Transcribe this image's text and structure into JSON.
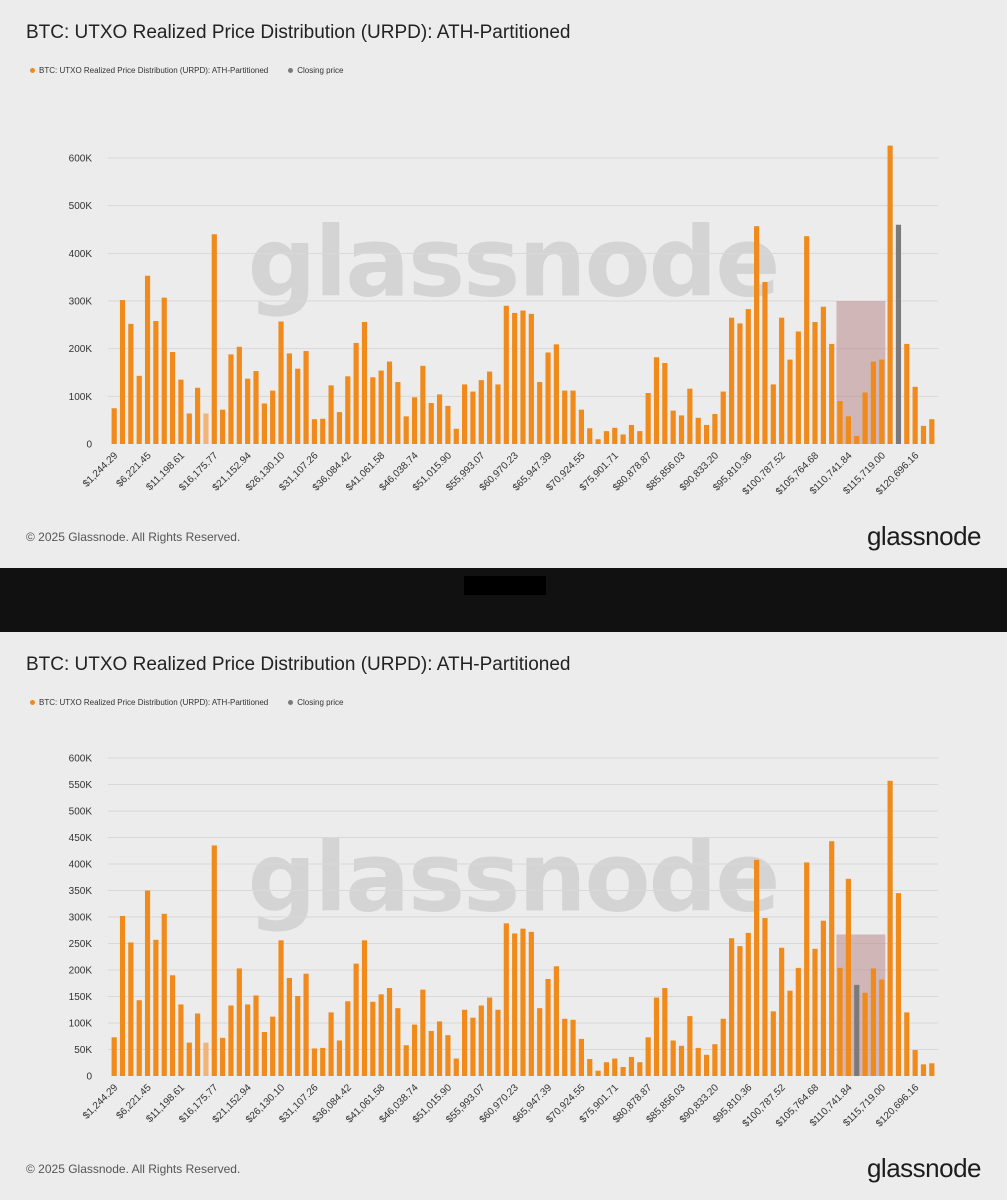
{
  "brand": {
    "watermark": "glassnode",
    "logo": "glassnode",
    "copyright": "© 2025 Glassnode. All Rights Reserved."
  },
  "colors": {
    "bar": "#ef8a1b",
    "bar_light": "#f1b377",
    "closing": "#7a7a7a",
    "highlight": "#b98a8a",
    "grid": "#d8d8d8"
  },
  "chart_data": [
    {
      "type": "bar",
      "title": "BTC: UTXO Realized Price Distribution (URPD): ATH-Partitioned",
      "legend": [
        {
          "label": "BTC: UTXO Realized Price Distribution (URPD): ATH-Partitioned",
          "color": "#ef8a1b"
        },
        {
          "label": "Closing price",
          "color": "#7a7a7a"
        }
      ],
      "legend_position": "top-left",
      "grid": true,
      "ylim": [
        0,
        600000
      ],
      "yticks": [
        0,
        100000,
        200000,
        300000,
        400000,
        500000,
        600000
      ],
      "ytick_labels": [
        "0",
        "100K",
        "200K",
        "300K",
        "400K",
        "500K",
        "600K"
      ],
      "xtick_labels": [
        "$1,244.29",
        "$6,221.45",
        "$11,198.61",
        "$16,175.77",
        "$21,152.94",
        "$26,130.10",
        "$31,107.26",
        "$36,084.42",
        "$41,061.58",
        "$46,038.74",
        "$51,015.90",
        "$55,993.07",
        "$60,970.23",
        "$65,947.39",
        "$70,924.55",
        "$75,901.71",
        "$80,878.87",
        "$85,856.03",
        "$90,833.20",
        "$95,810.36",
        "$100,787.52",
        "$105,764.68",
        "$110,741.84",
        "$115,719.00",
        "$120,696.16"
      ],
      "values": [
        75000,
        302000,
        252000,
        143000,
        353000,
        258000,
        307000,
        193000,
        135000,
        64000,
        118000,
        64000,
        440000,
        72000,
        188000,
        204000,
        137000,
        153000,
        85000,
        112000,
        257000,
        190000,
        158000,
        195000,
        52000,
        53000,
        123000,
        67000,
        142000,
        212000,
        256000,
        140000,
        154000,
        173000,
        130000,
        58000,
        98000,
        164000,
        86000,
        104000,
        80000,
        32000,
        125000,
        110000,
        134000,
        152000,
        125000,
        290000,
        275000,
        280000,
        273000,
        130000,
        192000,
        209000,
        112000,
        112000,
        72000,
        33000,
        10000,
        27000,
        34000,
        20000,
        40000,
        27000,
        107000,
        182000,
        170000,
        70000,
        60000,
        116000,
        55000,
        40000,
        63000,
        110000,
        265000,
        253000,
        283000,
        457000,
        340000,
        125000,
        265000,
        177000,
        236000,
        436000,
        256000,
        288000,
        210000,
        90000,
        58000,
        17000,
        108000,
        173000,
        177000,
        626000,
        460000,
        210000,
        120000,
        38000,
        52000
      ],
      "light_bars": [
        11
      ],
      "closing_price_bar": 94,
      "highlight_range": {
        "from_bar": 87,
        "to_bar": 92,
        "value": 300000
      }
    },
    {
      "type": "bar",
      "title": "BTC: UTXO Realized Price Distribution (URPD): ATH-Partitioned",
      "legend": [
        {
          "label": "BTC: UTXO Realized Price Distribution (URPD): ATH-Partitioned",
          "color": "#ef8a1b"
        },
        {
          "label": "Closing price",
          "color": "#7a7a7a"
        }
      ],
      "legend_position": "top-left",
      "grid": true,
      "ylim": [
        0,
        600000
      ],
      "yticks": [
        0,
        50000,
        100000,
        150000,
        200000,
        250000,
        300000,
        350000,
        400000,
        450000,
        500000,
        550000,
        600000
      ],
      "ytick_labels": [
        "0",
        "50K",
        "100K",
        "150K",
        "200K",
        "250K",
        "300K",
        "350K",
        "400K",
        "450K",
        "500K",
        "550K",
        "600K"
      ],
      "xtick_labels": [
        "$1,244.29",
        "$6,221.45",
        "$11,198.61",
        "$16,175.77",
        "$21,152.94",
        "$26,130.10",
        "$31,107.26",
        "$36,084.42",
        "$41,061.58",
        "$46,038.74",
        "$51,015.90",
        "$55,993.07",
        "$60,970.23",
        "$65,947.39",
        "$70,924.55",
        "$75,901.71",
        "$80,878.87",
        "$85,856.03",
        "$90,833.20",
        "$95,810.36",
        "$100,787.52",
        "$105,764.68",
        "$110,741.84",
        "$115,719.00",
        "$120,696.16"
      ],
      "values": [
        73000,
        302000,
        252000,
        143000,
        350000,
        257000,
        306000,
        190000,
        135000,
        63000,
        118000,
        63000,
        435000,
        72000,
        133000,
        203000,
        135000,
        152000,
        83000,
        112000,
        256000,
        185000,
        151000,
        193000,
        52000,
        53000,
        120000,
        67000,
        141000,
        212000,
        256000,
        140000,
        154000,
        166000,
        128000,
        58000,
        97000,
        163000,
        85000,
        103000,
        77000,
        33000,
        125000,
        110000,
        133000,
        148000,
        125000,
        288000,
        269000,
        278000,
        272000,
        128000,
        183000,
        207000,
        108000,
        106000,
        70000,
        32000,
        10000,
        26000,
        33000,
        17000,
        36000,
        26000,
        73000,
        148000,
        166000,
        67000,
        57000,
        113000,
        53000,
        40000,
        60000,
        108000,
        260000,
        245000,
        270000,
        408000,
        298000,
        122000,
        242000,
        161000,
        204000,
        403000,
        240000,
        293000,
        443000,
        204000,
        372000,
        172000,
        157000,
        203000,
        182000,
        557000,
        345000,
        120000,
        49000,
        22000,
        24000
      ],
      "light_bars": [
        11
      ],
      "closing_price_bar": 89,
      "highlight_range": {
        "from_bar": 87,
        "to_bar": 92,
        "value": 267000
      }
    }
  ]
}
